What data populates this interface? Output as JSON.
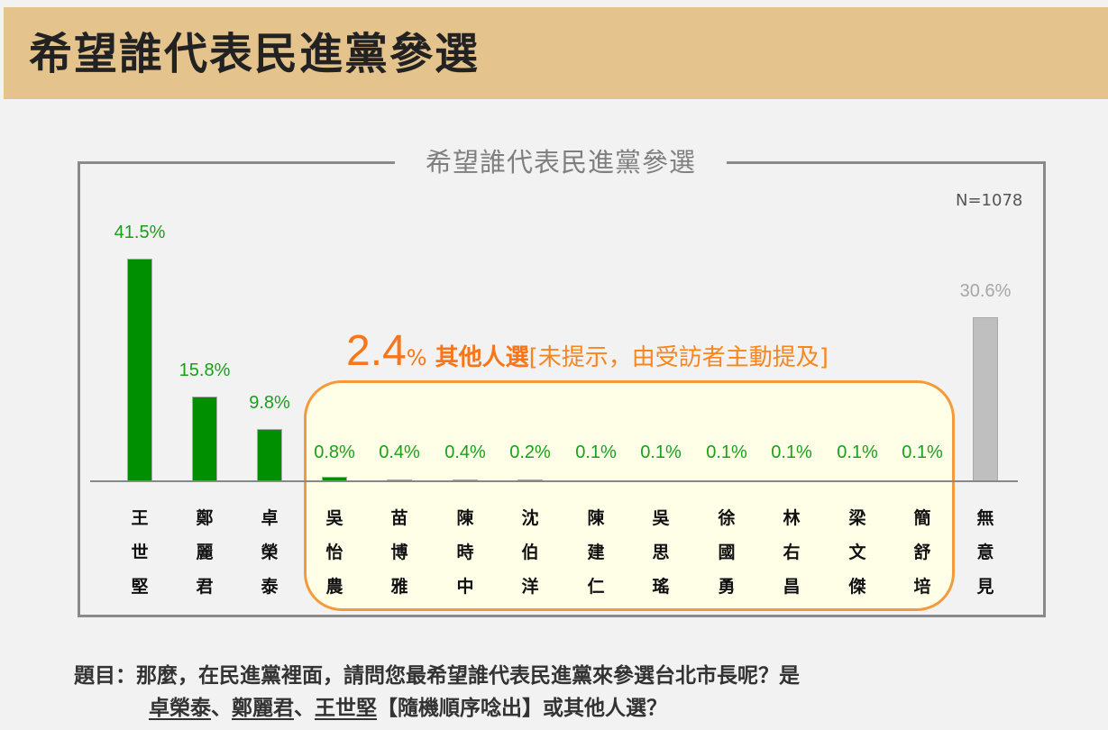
{
  "header": {
    "title": "希望誰代表民進黨參選"
  },
  "chart_frame": {
    "title": "希望誰代表民進黨參選",
    "sample_size": "N=1078"
  },
  "others_callout": {
    "value": "2.4",
    "percent_sign": "%",
    "label": " 其他人選",
    "note": "[未提示，由受訪者主動提及]"
  },
  "colors": {
    "header_bg": "#e4c38d",
    "bar_main": "#008f00",
    "bar_none": "#bfbfbf",
    "value_text": "#19a019",
    "others_accent": "#f7761a",
    "others_box_bg": "#ffffe8"
  },
  "chart_data": {
    "type": "bar",
    "title": "希望誰代表民進黨參選",
    "subtitle": "N=1078",
    "xlabel": "",
    "ylabel": "",
    "ylim": [
      0,
      45
    ],
    "grid": false,
    "categories": [
      "王世堅",
      "鄭麗君",
      "卓榮泰",
      "吳怡農",
      "苗博雅",
      "陳時中",
      "沈伯洋",
      "陳建仁",
      "吳思瑤",
      "徐國勇",
      "林右昌",
      "梁文傑",
      "簡舒培",
      "無意見"
    ],
    "values": [
      41.5,
      15.8,
      9.8,
      0.8,
      0.4,
      0.4,
      0.2,
      0.1,
      0.1,
      0.1,
      0.1,
      0.1,
      0.1,
      30.6
    ],
    "value_labels": [
      "41.5%",
      "15.8%",
      "9.8%",
      "0.8%",
      "0.4%",
      "0.4%",
      "0.2%",
      "0.1%",
      "0.1%",
      "0.1%",
      "0.1%",
      "0.1%",
      "0.1%",
      "30.6%"
    ],
    "annotations": [
      "2.4% 其他人選[未提示，由受訪者主動提及]"
    ],
    "groups": {
      "others_total": 2.4,
      "others_members": [
        "吳怡農",
        "苗博雅",
        "陳時中",
        "沈伯洋",
        "陳建仁",
        "吳思瑤",
        "徐國勇",
        "林右昌",
        "梁文傑",
        "簡舒培"
      ]
    }
  },
  "bars": [
    {
      "name": "王世堅",
      "chars": [
        "王",
        "世",
        "堅"
      ],
      "label": "41.5%",
      "value": 41.5,
      "style": "green"
    },
    {
      "name": "鄭麗君",
      "chars": [
        "鄭",
        "麗",
        "君"
      ],
      "label": "15.8%",
      "value": 15.8,
      "style": "green"
    },
    {
      "name": "卓榮泰",
      "chars": [
        "卓",
        "榮",
        "泰"
      ],
      "label": "9.8%",
      "value": 9.8,
      "style": "green"
    },
    {
      "name": "吳怡農",
      "chars": [
        "吳",
        "怡",
        "農"
      ],
      "label": "0.8%",
      "value": 0.8,
      "style": "green"
    },
    {
      "name": "苗博雅",
      "chars": [
        "苗",
        "博",
        "雅"
      ],
      "label": "0.4%",
      "value": 0.4,
      "style": "gray-small"
    },
    {
      "name": "陳時中",
      "chars": [
        "陳",
        "時",
        "中"
      ],
      "label": "0.4%",
      "value": 0.4,
      "style": "gray-small"
    },
    {
      "name": "沈伯洋",
      "chars": [
        "沈",
        "伯",
        "洋"
      ],
      "label": "0.2%",
      "value": 0.2,
      "style": "gray-small"
    },
    {
      "name": "陳建仁",
      "chars": [
        "陳",
        "建",
        "仁"
      ],
      "label": "0.1%",
      "value": 0.1,
      "style": "none"
    },
    {
      "name": "吳思瑤",
      "chars": [
        "吳",
        "思",
        "瑤"
      ],
      "label": "0.1%",
      "value": 0.1,
      "style": "none"
    },
    {
      "name": "徐國勇",
      "chars": [
        "徐",
        "國",
        "勇"
      ],
      "label": "0.1%",
      "value": 0.1,
      "style": "none"
    },
    {
      "name": "林右昌",
      "chars": [
        "林",
        "右",
        "昌"
      ],
      "label": "0.1%",
      "value": 0.1,
      "style": "none"
    },
    {
      "name": "梁文傑",
      "chars": [
        "梁",
        "文",
        "傑"
      ],
      "label": "0.1%",
      "value": 0.1,
      "style": "none"
    },
    {
      "name": "簡舒培",
      "chars": [
        "簡",
        "舒",
        "培"
      ],
      "label": "0.1%",
      "value": 0.1,
      "style": "none"
    },
    {
      "name": "無意見",
      "chars": [
        "無",
        "意",
        "見"
      ],
      "label": "30.6%",
      "value": 30.6,
      "style": "gray"
    }
  ],
  "question": {
    "line1": "題目：那麼，在民進黨裡面，請問您最希望誰代表民進黨來參選台北市長呢？是",
    "line2_parts": [
      {
        "text": "卓榮泰",
        "underline": true
      },
      {
        "text": "、",
        "underline": false
      },
      {
        "text": "鄭麗君",
        "underline": true
      },
      {
        "text": "、",
        "underline": false
      },
      {
        "text": "王世堅",
        "underline": true
      },
      {
        "text": "【隨機順序唸出】或其他人選？",
        "underline": false
      }
    ]
  }
}
